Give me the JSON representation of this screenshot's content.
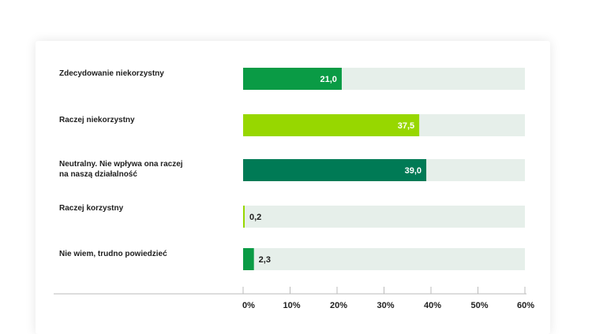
{
  "chart_data": {
    "type": "bar",
    "orientation": "horizontal",
    "categories": [
      "Zdecydowanie niekorzystny",
      "Raczej niekorzystny",
      "Neutralny. Nie wpływa ona raczej na naszą działalność",
      "Raczej korzystny",
      "Nie wiem, trudno powiedzieć"
    ],
    "category_lines": [
      [
        "Zdecydowanie niekorzystny"
      ],
      [
        "Raczej niekorzystny"
      ],
      [
        "Neutralny. Nie wpływa ona raczej",
        "na naszą działalność"
      ],
      [
        "Raczej korzystny"
      ],
      [
        "Nie wiem, trudno powiedzieć"
      ]
    ],
    "values": [
      21.0,
      37.5,
      39.0,
      0.2,
      2.3
    ],
    "value_labels": [
      "21,0",
      "37,5",
      "39,0",
      "0,2",
      "2,3"
    ],
    "bar_colors": [
      "#0a9b45",
      "#97d700",
      "#007a55",
      "#97d700",
      "#0a9b45"
    ],
    "track_color": "#e6efea",
    "xlim": [
      0,
      60
    ],
    "x_ticks": [
      0,
      10,
      20,
      30,
      40,
      50,
      60
    ],
    "x_tick_labels": [
      "0%",
      "10%",
      "20%",
      "30%",
      "40%",
      "50%",
      "60%"
    ],
    "grid": false
  }
}
